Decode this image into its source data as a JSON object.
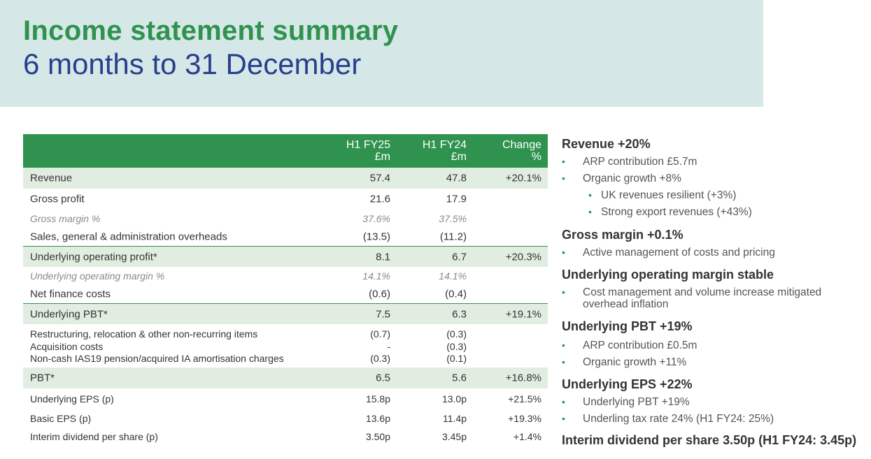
{
  "header": {
    "title": "Income statement summary",
    "subtitle": "6 months to 31 December"
  },
  "table": {
    "columns": [
      {
        "line1": "H1 FY25",
        "line2": "£m"
      },
      {
        "line1": "H1 FY24",
        "line2": "£m"
      },
      {
        "line1": "Change",
        "line2": "%"
      }
    ],
    "rows": [
      {
        "label": "Revenue",
        "v1": "57.4",
        "v2": "47.8",
        "v3": "+20.1%"
      },
      {
        "label": "Gross profit",
        "v1": "21.6",
        "v2": "17.9",
        "v3": ""
      },
      {
        "label": "Gross margin %",
        "v1": "37.6%",
        "v2": "37.5%",
        "v3": ""
      },
      {
        "label": "Sales, general & administration overheads",
        "v1": "(13.5)",
        "v2": "(11.2)",
        "v3": ""
      },
      {
        "label": "Underlying operating profit*",
        "v1": "8.1",
        "v2": "6.7",
        "v3": "+20.3%"
      },
      {
        "label": "Underlying operating margin %",
        "v1": "14.1%",
        "v2": "14.1%",
        "v3": ""
      },
      {
        "label": "Net finance costs",
        "v1": "(0.6)",
        "v2": "(0.4)",
        "v3": ""
      },
      {
        "label": "Underlying PBT*",
        "v1": "7.5",
        "v2": "6.3",
        "v3": "+19.1%"
      },
      {
        "label": "PBT*",
        "v1": "6.5",
        "v2": "5.6",
        "v3": "+16.8%"
      },
      {
        "label": "Underlying EPS (p)",
        "v1": "15.8p",
        "v2": "13.0p",
        "v3": "+21.5%"
      },
      {
        "label": "Basic EPS (p)",
        "v1": "13.6p",
        "v2": "11.4p",
        "v3": "+19.3%"
      },
      {
        "label": "Interim dividend per share (p)",
        "v1": "3.50p",
        "v2": "3.45p",
        "v3": "+1.4%"
      }
    ],
    "non_recurring": [
      {
        "label": "Restructuring, relocation & other non-recurring items",
        "v1": "(0.7)",
        "v2": "(0.3)"
      },
      {
        "label": "Acquisition costs",
        "v1": "-",
        "v2": "(0.3)"
      },
      {
        "label": "Non-cash IAS19 pension/acquired IA amortisation charges",
        "v1": "(0.3)",
        "v2": "(0.1)"
      }
    ]
  },
  "highlights": {
    "revenue": {
      "heading": "Revenue +20%",
      "bullets": [
        "ARP contribution £5.7m",
        "Organic growth +8%"
      ],
      "sub_bullets": [
        "UK revenues resilient (+3%)",
        "Strong export revenues (+43%)"
      ]
    },
    "gross_margin": {
      "heading": "Gross margin +0.1%",
      "bullets": [
        "Active management of costs and pricing"
      ]
    },
    "operating_margin": {
      "heading": "Underlying operating margin stable",
      "bullets": [
        "Cost management and volume increase mitigated overhead inflation"
      ]
    },
    "pbt": {
      "heading": "Underlying PBT +19%",
      "bullets": [
        "ARP contribution £0.5m",
        "Organic growth +11%"
      ]
    },
    "eps": {
      "heading": "Underlying EPS +22%",
      "bullets": [
        "Underlying PBT +19%",
        "Underling tax rate 24% (H1 FY24: 25%)"
      ]
    },
    "dividend": {
      "heading": "Interim dividend per share 3.50p (H1 FY24: 3.45p)"
    }
  },
  "colors": {
    "green": "#2f934f",
    "navy": "#283f8e",
    "header_bg": "#d5e7e6",
    "band_bg": "#e2ede1"
  }
}
